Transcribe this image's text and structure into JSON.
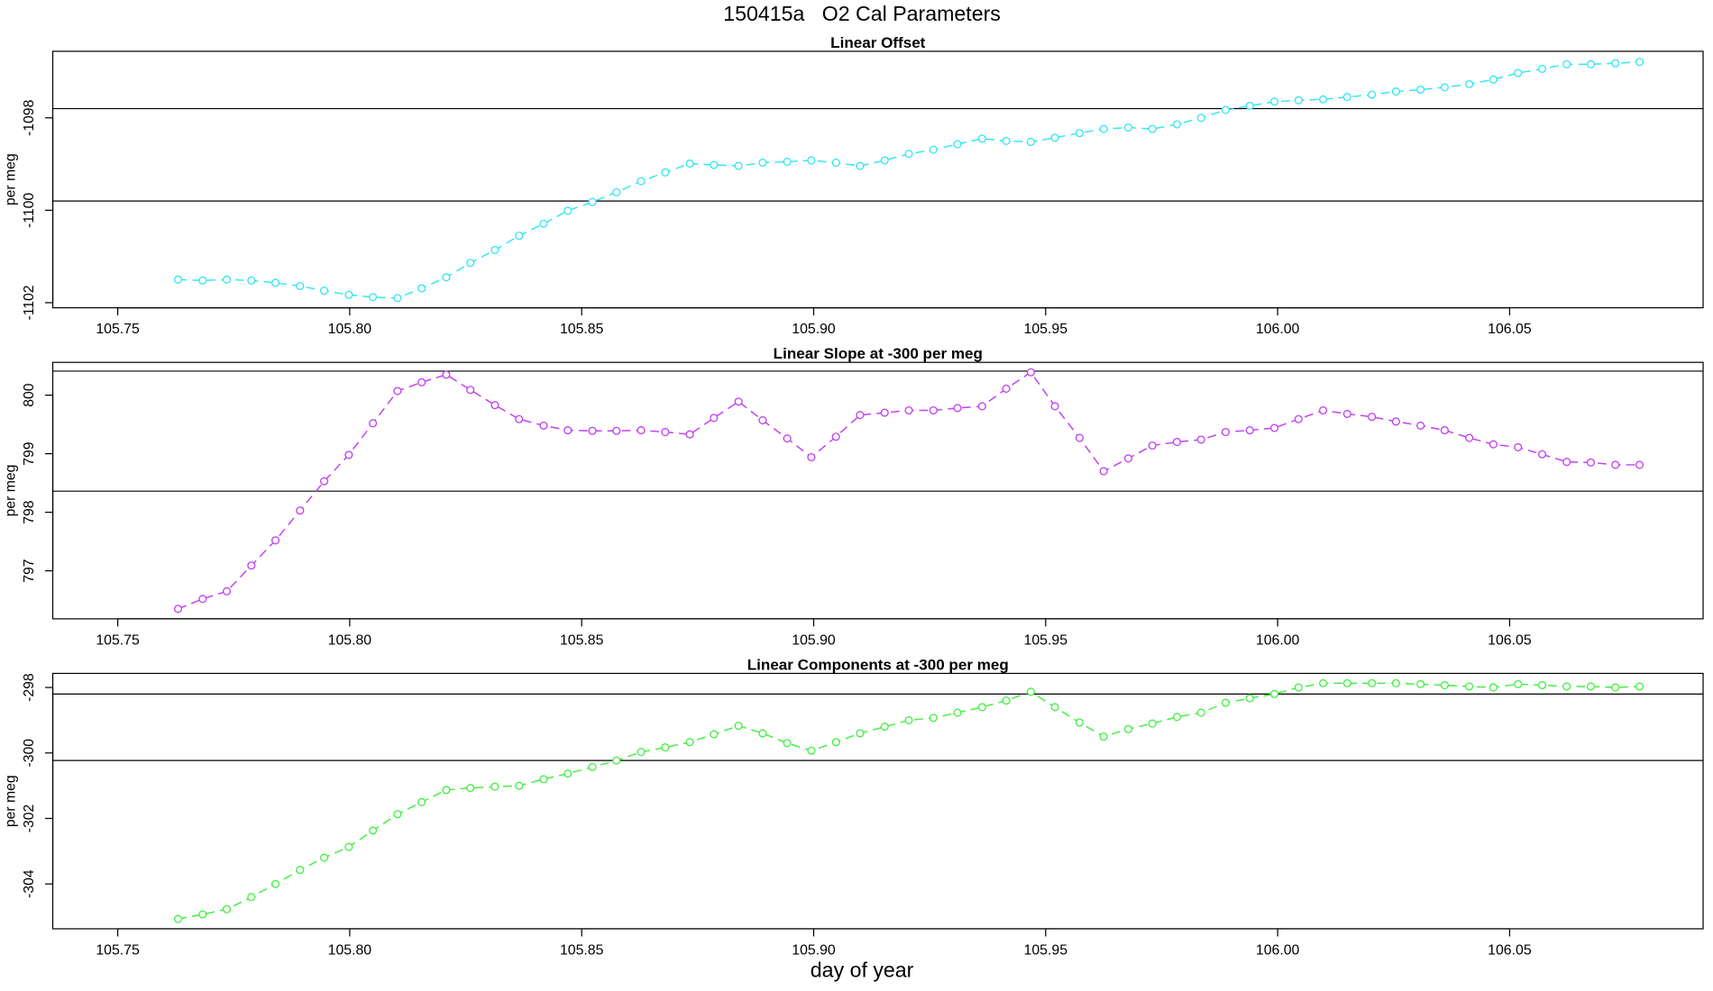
{
  "title": "150415a   O2 Cal Parameters",
  "xlabel": "day of year",
  "chart_data": [
    {
      "type": "line",
      "title": "Linear Offset",
      "ylabel": "per meg",
      "color": "#33e6f2",
      "x": [
        105.763,
        105.7683,
        105.7735,
        105.7788,
        105.784,
        105.7893,
        105.7945,
        105.7998,
        105.805,
        105.8103,
        105.8155,
        105.8208,
        105.826,
        105.8313,
        105.8365,
        105.8418,
        105.847,
        105.8523,
        105.8575,
        105.8628,
        105.868,
        105.8733,
        105.8785,
        105.8838,
        105.889,
        105.8943,
        105.8995,
        105.9048,
        105.91,
        105.9153,
        105.9205,
        105.9258,
        105.931,
        105.9363,
        105.9415,
        105.9468,
        105.952,
        105.9573,
        105.9625,
        105.9678,
        105.973,
        105.9783,
        105.9835,
        105.9888,
        105.994,
        105.9993,
        106.0045,
        106.0098,
        106.015,
        106.0203,
        106.0255,
        106.0308,
        106.036,
        106.0413,
        106.0465,
        106.0518,
        106.057,
        106.0623,
        106.0675,
        106.0728,
        106.078
      ],
      "values": [
        -1101.5,
        -1101.52,
        -1101.5,
        -1101.52,
        -1101.57,
        -1101.64,
        -1101.74,
        -1101.83,
        -1101.88,
        -1101.9,
        -1101.69,
        -1101.45,
        -1101.14,
        -1100.86,
        -1100.55,
        -1100.29,
        -1100.01,
        -1099.82,
        -1099.61,
        -1099.37,
        -1099.18,
        -1098.99,
        -1099.02,
        -1099.04,
        -1098.97,
        -1098.95,
        -1098.92,
        -1098.97,
        -1099.04,
        -1098.92,
        -1098.78,
        -1098.69,
        -1098.57,
        -1098.45,
        -1098.5,
        -1098.52,
        -1098.43,
        -1098.33,
        -1098.24,
        -1098.21,
        -1098.24,
        -1098.14,
        -1098.0,
        -1097.83,
        -1097.74,
        -1097.65,
        -1097.62,
        -1097.6,
        -1097.55,
        -1097.5,
        -1097.43,
        -1097.39,
        -1097.34,
        -1097.27,
        -1097.17,
        -1097.03,
        -1096.94,
        -1096.84,
        -1096.84,
        -1096.82,
        -1096.79
      ],
      "hlines": [
        -1097.8,
        -1099.8
      ],
      "xlim": [
        105.736,
        106.0917
      ],
      "ylim": [
        -1102.11,
        -1096.56
      ],
      "xticks": [
        105.75,
        {
          "value": 105.8,
          "label": "105.80"
        },
        105.85,
        {
          "value": 105.9,
          "label": "105.90"
        },
        105.95,
        {
          "value": 106,
          "label": "106.00"
        },
        106.05
      ],
      "yticks": [
        -1102,
        -1100,
        -1098
      ]
    },
    {
      "type": "line",
      "title": "Linear Slope at -300 per meg",
      "ylabel": "per meg",
      "color": "#c040f0",
      "x": [
        105.763,
        105.7683,
        105.7735,
        105.7788,
        105.784,
        105.7893,
        105.7945,
        105.7998,
        105.805,
        105.8103,
        105.8155,
        105.8208,
        105.826,
        105.8313,
        105.8365,
        105.8418,
        105.847,
        105.8523,
        105.8575,
        105.8628,
        105.868,
        105.8733,
        105.8785,
        105.8838,
        105.889,
        105.8943,
        105.8995,
        105.9048,
        105.91,
        105.9153,
        105.9205,
        105.9258,
        105.931,
        105.9363,
        105.9415,
        105.9468,
        105.952,
        105.9573,
        105.9625,
        105.9678,
        105.973,
        105.9783,
        105.9835,
        105.9888,
        105.994,
        105.9993,
        106.0045,
        106.0098,
        106.015,
        106.0203,
        106.0255,
        106.0308,
        106.036,
        106.0413,
        106.0465,
        106.0518,
        106.057,
        106.0623,
        106.0675,
        106.0728,
        106.078
      ],
      "values": [
        796.35,
        796.52,
        796.65,
        797.09,
        797.52,
        798.03,
        798.53,
        798.98,
        799.52,
        800.07,
        800.22,
        800.35,
        800.09,
        799.83,
        799.59,
        799.48,
        799.4,
        799.39,
        799.39,
        799.4,
        799.37,
        799.33,
        799.61,
        799.89,
        799.57,
        799.26,
        798.94,
        799.29,
        799.66,
        799.7,
        799.74,
        799.74,
        799.78,
        799.81,
        800.11,
        800.39,
        799.81,
        799.27,
        798.7,
        798.92,
        799.14,
        799.2,
        799.24,
        799.37,
        799.4,
        799.44,
        799.59,
        799.74,
        799.68,
        799.63,
        799.55,
        799.48,
        799.4,
        799.27,
        799.16,
        799.11,
        798.99,
        798.86,
        798.85,
        798.81,
        798.81
      ],
      "hlines": [
        800.41,
        798.36
      ],
      "xlim": [
        105.736,
        106.0917
      ],
      "ylim": [
        796.18,
        800.56
      ],
      "xticks": [
        105.75,
        {
          "value": 105.8,
          "label": "105.80"
        },
        105.85,
        {
          "value": 105.9,
          "label": "105.90"
        },
        105.95,
        {
          "value": 106,
          "label": "106.00"
        },
        106.05
      ],
      "yticks": [
        797,
        798,
        799,
        800
      ]
    },
    {
      "type": "line",
      "title": "Linear Components at -300 per meg",
      "ylabel": "per meg",
      "color": "#44ee44",
      "x": [
        105.763,
        105.7683,
        105.7735,
        105.7788,
        105.784,
        105.7893,
        105.7945,
        105.7998,
        105.805,
        105.8103,
        105.8155,
        105.8208,
        105.826,
        105.8313,
        105.8365,
        105.8418,
        105.847,
        105.8523,
        105.8575,
        105.8628,
        105.868,
        105.8733,
        105.8785,
        105.8838,
        105.889,
        105.8943,
        105.8995,
        105.9048,
        105.91,
        105.9153,
        105.9205,
        105.9258,
        105.931,
        105.9363,
        105.9415,
        105.9468,
        105.952,
        105.9573,
        105.9625,
        105.9678,
        105.973,
        105.9783,
        105.9835,
        105.9888,
        105.994,
        105.9993,
        106.0045,
        106.0098,
        106.015,
        106.0203,
        106.0255,
        106.0308,
        106.036,
        106.0413,
        106.0465,
        106.0518,
        106.057,
        106.0623,
        106.0675,
        106.0728,
        106.078
      ],
      "values": [
        -305.07,
        -304.93,
        -304.77,
        -304.4,
        -304.0,
        -303.57,
        -303.2,
        -302.87,
        -302.37,
        -301.87,
        -301.5,
        -301.13,
        -301.07,
        -301.03,
        -301.0,
        -300.8,
        -300.63,
        -300.43,
        -300.23,
        -299.97,
        -299.83,
        -299.67,
        -299.43,
        -299.17,
        -299.4,
        -299.7,
        -299.93,
        -299.67,
        -299.4,
        -299.2,
        -299.0,
        -298.93,
        -298.77,
        -298.6,
        -298.4,
        -298.13,
        -298.6,
        -299.07,
        -299.5,
        -299.27,
        -299.1,
        -298.9,
        -298.77,
        -298.47,
        -298.33,
        -298.2,
        -298.0,
        -297.87,
        -297.87,
        -297.87,
        -297.87,
        -297.9,
        -297.93,
        -297.97,
        -298.0,
        -297.9,
        -297.93,
        -297.97,
        -297.97,
        -298.0,
        -297.97
      ],
      "hlines": [
        -298.2,
        -300.23
      ],
      "xlim": [
        105.736,
        106.0917
      ],
      "ylim": [
        -305.37,
        -297.57
      ],
      "xticks": [
        105.75,
        {
          "value": 105.8,
          "label": "105.80"
        },
        105.85,
        {
          "value": 105.9,
          "label": "105.90"
        },
        105.95,
        {
          "value": 106,
          "label": "106.00"
        },
        106.05
      ],
      "yticks": [
        -304,
        -302,
        -300,
        -298
      ]
    }
  ]
}
